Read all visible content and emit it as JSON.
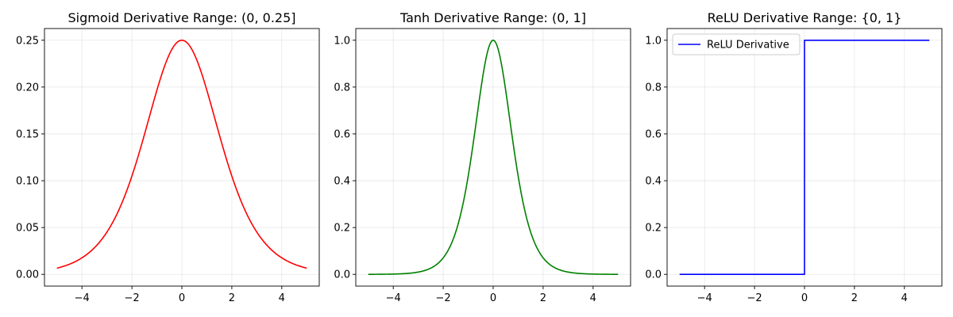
{
  "chart_data": [
    {
      "type": "line",
      "title": "Sigmoid Derivative Range: (0, 0.25]",
      "function": "sigmoid_derivative",
      "xlabel": "",
      "ylabel": "",
      "xlim": [
        -5.5,
        5.5
      ],
      "ylim": [
        -0.0125,
        0.2625
      ],
      "xticks": [
        -4,
        -2,
        0,
        2,
        4
      ],
      "xtick_labels": [
        "−4",
        "−2",
        "0",
        "2",
        "4"
      ],
      "yticks": [
        0.0,
        0.05,
        0.1,
        0.15,
        0.2,
        0.25
      ],
      "ytick_labels": [
        "0.00",
        "0.05",
        "0.10",
        "0.15",
        "0.20",
        "0.25"
      ],
      "grid": true,
      "legend": null,
      "series": [
        {
          "color": "#ff0000",
          "x": [
            -5,
            -4.5,
            -4,
            -3.5,
            -3,
            -2.5,
            -2,
            -1.5,
            -1,
            -0.5,
            0,
            0.5,
            1,
            1.5,
            2,
            2.5,
            3,
            3.5,
            4,
            4.5,
            5
          ],
          "values": [
            0.0066,
            0.0108,
            0.0177,
            0.0285,
            0.0452,
            0.0701,
            0.105,
            0.1491,
            0.1966,
            0.235,
            0.25,
            0.235,
            0.1966,
            0.1491,
            0.105,
            0.0701,
            0.0452,
            0.0285,
            0.0177,
            0.0108,
            0.0066
          ]
        }
      ]
    },
    {
      "type": "line",
      "title": "Tanh Derivative Range: (0, 1]",
      "function": "tanh_derivative",
      "xlabel": "",
      "ylabel": "",
      "xlim": [
        -5.5,
        5.5
      ],
      "ylim": [
        -0.05,
        1.05
      ],
      "xticks": [
        -4,
        -2,
        0,
        2,
        4
      ],
      "xtick_labels": [
        "−4",
        "−2",
        "0",
        "2",
        "4"
      ],
      "yticks": [
        0.0,
        0.2,
        0.4,
        0.6,
        0.8,
        1.0
      ],
      "ytick_labels": [
        "0.0",
        "0.2",
        "0.4",
        "0.6",
        "0.8",
        "1.0"
      ],
      "grid": true,
      "legend": null,
      "series": [
        {
          "color": "#008000",
          "x": [
            -5,
            -4,
            -3,
            -2.5,
            -2,
            -1.5,
            -1,
            -0.75,
            -0.5,
            -0.25,
            0,
            0.25,
            0.5,
            0.75,
            1,
            1.5,
            2,
            2.5,
            3,
            4,
            5
          ],
          "values": [
            0.0002,
            0.0013,
            0.0099,
            0.0266,
            0.0707,
            0.1807,
            0.42,
            0.5978,
            0.7864,
            0.9401,
            1.0,
            0.9401,
            0.7864,
            0.5978,
            0.42,
            0.1807,
            0.0707,
            0.0266,
            0.0099,
            0.0013,
            0.0002
          ]
        }
      ]
    },
    {
      "type": "line",
      "title": "ReLU Derivative Range: {0, 1}",
      "function": "relu_derivative",
      "xlabel": "",
      "ylabel": "",
      "xlim": [
        -5.5,
        5.5
      ],
      "ylim": [
        -0.05,
        1.05
      ],
      "xticks": [
        -4,
        -2,
        0,
        2,
        4
      ],
      "xtick_labels": [
        "−4",
        "−2",
        "0",
        "2",
        "4"
      ],
      "yticks": [
        0.0,
        0.2,
        0.4,
        0.6,
        0.8,
        1.0
      ],
      "ytick_labels": [
        "0.0",
        "0.2",
        "0.4",
        "0.6",
        "0.8",
        "1.0"
      ],
      "grid": true,
      "legend": "upper left",
      "series": [
        {
          "name": "ReLU Derivative",
          "color": "#0000ff",
          "x": [
            -5,
            0,
            0,
            5
          ],
          "values": [
            0,
            0,
            1,
            1
          ]
        }
      ]
    }
  ]
}
